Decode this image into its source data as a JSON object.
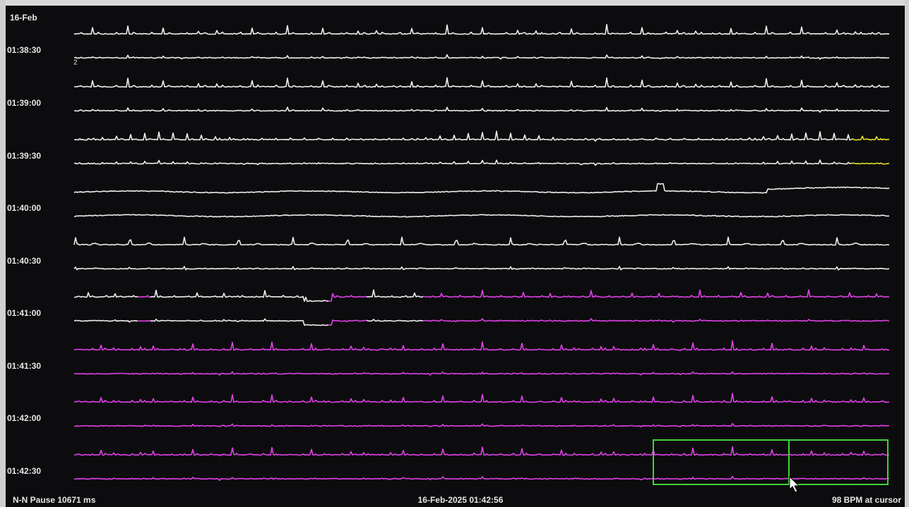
{
  "header": {
    "date": "16-Feb"
  },
  "time_labels": [
    "01:38:30",
    "01:39:00",
    "01:39:30",
    "01:40:00",
    "01:40:30",
    "01:41:00",
    "01:41:30",
    "01:42:00",
    "01:42:30"
  ],
  "channel_label": "2",
  "footer": {
    "left": "N-N Pause 10671 ms",
    "center": "16-Feb-2025 01:42:56",
    "right": "98 BPM at cursor"
  }
}
